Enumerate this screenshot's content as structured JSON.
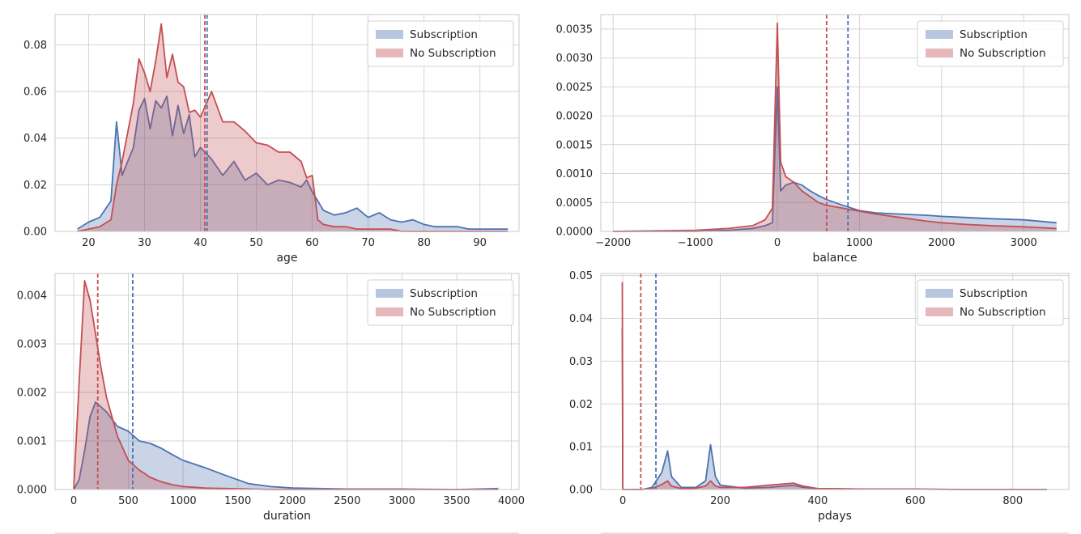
{
  "colors": {
    "subscription": "#4c72b0",
    "no_subscription": "#c44e52"
  },
  "chart_data": [
    {
      "type": "area",
      "xlabel": "age",
      "xlim": [
        14,
        97
      ],
      "ylim": [
        0,
        0.093
      ],
      "xticks": [
        20,
        30,
        40,
        50,
        60,
        70,
        80,
        90
      ],
      "xtick_labels": [
        "20",
        "30",
        "40",
        "50",
        "60",
        "70",
        "80",
        "90"
      ],
      "yticks": [
        0,
        0.02,
        0.04,
        0.06,
        0.08
      ],
      "ytick_labels": [
        "0.00",
        "0.02",
        "0.04",
        "0.06",
        "0.08"
      ],
      "grid": true,
      "legend": "top-right",
      "means": {
        "Subscription": 41.2,
        "No Subscription": 40.8
      },
      "series": [
        {
          "name": "Subscription",
          "x": [
            18,
            20,
            22,
            24,
            25,
            26,
            28,
            29,
            30,
            31,
            32,
            33,
            34,
            35,
            36,
            37,
            38,
            39,
            40,
            42,
            44,
            46,
            48,
            50,
            52,
            54,
            56,
            58,
            59,
            60,
            61,
            62,
            64,
            66,
            68,
            70,
            72,
            74,
            76,
            78,
            80,
            82,
            84,
            86,
            88,
            90,
            92,
            95
          ],
          "y": [
            0.001,
            0.004,
            0.006,
            0.013,
            0.047,
            0.024,
            0.036,
            0.052,
            0.057,
            0.044,
            0.056,
            0.053,
            0.058,
            0.041,
            0.054,
            0.042,
            0.05,
            0.032,
            0.036,
            0.031,
            0.024,
            0.03,
            0.022,
            0.025,
            0.02,
            0.022,
            0.021,
            0.019,
            0.022,
            0.017,
            0.013,
            0.009,
            0.007,
            0.008,
            0.01,
            0.006,
            0.008,
            0.005,
            0.004,
            0.005,
            0.003,
            0.002,
            0.002,
            0.002,
            0.001,
            0.001,
            0.001,
            0.001
          ]
        },
        {
          "name": "No Subscription",
          "x": [
            18,
            20,
            22,
            24,
            25,
            26,
            28,
            29,
            30,
            31,
            32,
            33,
            34,
            35,
            36,
            37,
            38,
            39,
            40,
            42,
            44,
            46,
            48,
            50,
            52,
            54,
            56,
            58,
            59,
            60,
            61,
            62,
            64,
            66,
            68,
            70,
            72,
            74,
            76,
            78,
            80,
            82,
            84,
            86,
            88,
            90,
            92,
            95
          ],
          "y": [
            0.0,
            0.001,
            0.002,
            0.005,
            0.02,
            0.03,
            0.055,
            0.074,
            0.068,
            0.06,
            0.073,
            0.089,
            0.066,
            0.076,
            0.064,
            0.062,
            0.051,
            0.052,
            0.049,
            0.06,
            0.047,
            0.047,
            0.043,
            0.038,
            0.037,
            0.034,
            0.034,
            0.03,
            0.023,
            0.024,
            0.005,
            0.003,
            0.002,
            0.002,
            0.001,
            0.001,
            0.001,
            0.001,
            0.0,
            0.0,
            0.0,
            0.0,
            0.0,
            0.0,
            0.0,
            0.0,
            0.0,
            0.0
          ]
        }
      ]
    },
    {
      "type": "area",
      "xlabel": "balance",
      "xlim": [
        -2150,
        3550
      ],
      "ylim": [
        0,
        0.00375
      ],
      "xticks": [
        -2000,
        -1000,
        0,
        1000,
        2000,
        3000
      ],
      "xtick_labels": [
        "−2000",
        "−1000",
        "0",
        "1000",
        "2000",
        "3000"
      ],
      "yticks": [
        0,
        0.0005,
        0.001,
        0.0015,
        0.002,
        0.0025,
        0.003,
        0.0035
      ],
      "ytick_labels": [
        "0.0000",
        "0.0005",
        "0.0010",
        "0.0015",
        "0.0020",
        "0.0025",
        "0.0030",
        "0.0035"
      ],
      "grid": true,
      "legend": "top-right",
      "means": {
        "Subscription": 860,
        "No Subscription": 600
      },
      "series": [
        {
          "name": "Subscription",
          "x": [
            -2000,
            -1500,
            -1000,
            -600,
            -300,
            -150,
            -60,
            0,
            40,
            100,
            200,
            300,
            400,
            500,
            600,
            800,
            1000,
            1200,
            1500,
            1800,
            2000,
            2300,
            2600,
            3000,
            3400
          ],
          "y": [
            0.0,
            0.0,
            0.0,
            2e-05,
            5e-05,
            0.0001,
            0.00015,
            0.0025,
            0.0007,
            0.0008,
            0.00085,
            0.0008,
            0.0007,
            0.00062,
            0.00055,
            0.00045,
            0.00036,
            0.00032,
            0.0003,
            0.00028,
            0.00026,
            0.00024,
            0.00022,
            0.0002,
            0.00015
          ]
        },
        {
          "name": "No Subscription",
          "x": [
            -2000,
            -1500,
            -1000,
            -600,
            -300,
            -150,
            -60,
            0,
            40,
            100,
            200,
            300,
            400,
            500,
            600,
            800,
            1000,
            1200,
            1500,
            1800,
            2000,
            2300,
            2600,
            3000,
            3400
          ],
          "y": [
            0.0,
            1e-05,
            2e-05,
            5e-05,
            0.0001,
            0.0002,
            0.0004,
            0.0036,
            0.0012,
            0.00095,
            0.00085,
            0.0007,
            0.0006,
            0.0005,
            0.00045,
            0.0004,
            0.00035,
            0.0003,
            0.00024,
            0.00018,
            0.00015,
            0.00012,
            0.0001,
            8e-05,
            5e-05
          ]
        }
      ]
    },
    {
      "type": "area",
      "xlabel": "duration",
      "xlim": [
        -170,
        4070
      ],
      "ylim": [
        0,
        0.00445
      ],
      "xticks": [
        0,
        500,
        1000,
        1500,
        2000,
        2500,
        3000,
        3500,
        4000
      ],
      "xtick_labels": [
        "0",
        "500",
        "1000",
        "1500",
        "2000",
        "2500",
        "3000",
        "3500",
        "4000"
      ],
      "yticks": [
        0,
        0.001,
        0.002,
        0.003,
        0.004
      ],
      "ytick_labels": [
        "0.000",
        "0.001",
        "0.002",
        "0.003",
        "0.004"
      ],
      "grid": true,
      "legend": "top-right",
      "means": {
        "Subscription": 540,
        "No Subscription": 220
      },
      "series": [
        {
          "name": "Subscription",
          "x": [
            0,
            50,
            100,
            150,
            200,
            250,
            300,
            400,
            500,
            600,
            700,
            800,
            900,
            1000,
            1200,
            1400,
            1600,
            1800,
            2000,
            2500,
            3000,
            3500,
            3880
          ],
          "y": [
            0.0,
            0.0002,
            0.0008,
            0.0015,
            0.0018,
            0.0017,
            0.0016,
            0.0013,
            0.0012,
            0.001,
            0.00095,
            0.00085,
            0.00072,
            0.0006,
            0.00045,
            0.00028,
            0.00012,
            6e-05,
            3e-05,
            1e-05,
            1e-05,
            0.0,
            2e-05
          ]
        },
        {
          "name": "No Subscription",
          "x": [
            0,
            50,
            100,
            150,
            200,
            250,
            300,
            400,
            500,
            600,
            700,
            800,
            900,
            1000,
            1200,
            1400,
            1600,
            1800,
            2000,
            2500,
            3000,
            3500,
            3880
          ],
          "y": [
            0.0,
            0.0022,
            0.0043,
            0.0039,
            0.0032,
            0.0025,
            0.0019,
            0.0011,
            0.0006,
            0.0004,
            0.00025,
            0.00016,
            0.0001,
            6e-05,
            3e-05,
            2e-05,
            1e-05,
            0.0,
            0.0,
            0.0,
            0.0,
            0.0,
            0.0
          ]
        }
      ]
    },
    {
      "type": "area",
      "xlabel": "pdays",
      "xlim": [
        -45,
        915
      ],
      "ylim": [
        0,
        0.0505
      ],
      "xticks": [
        0,
        200,
        400,
        600,
        800
      ],
      "xtick_labels": [
        "0",
        "200",
        "400",
        "600",
        "800"
      ],
      "yticks": [
        0,
        0.01,
        0.02,
        0.03,
        0.04,
        0.05
      ],
      "ytick_labels": [
        "0.00",
        "0.01",
        "0.02",
        "0.03",
        "0.04",
        "0.05"
      ],
      "grid": true,
      "legend": "top-right",
      "means": {
        "Subscription": 68,
        "No Subscription": 37
      },
      "series": [
        {
          "name": "Subscription",
          "x": [
            -1,
            0,
            20,
            40,
            60,
            80,
            92,
            100,
            120,
            150,
            170,
            180,
            190,
            200,
            250,
            300,
            350,
            370,
            400,
            500,
            600,
            700,
            800,
            870
          ],
          "y": [
            0.038,
            0.0,
            0.0,
            0.0,
            0.0005,
            0.004,
            0.009,
            0.003,
            0.0005,
            0.0005,
            0.002,
            0.0105,
            0.003,
            0.001,
            0.0003,
            0.0005,
            0.001,
            0.0005,
            0.0002,
            0.0001,
            0.0001,
            0.0,
            0.0,
            0.0
          ]
        },
        {
          "name": "No Subscription",
          "x": [
            -1,
            0,
            20,
            40,
            60,
            80,
            92,
            100,
            120,
            150,
            170,
            180,
            190,
            200,
            250,
            300,
            350,
            370,
            400,
            500,
            600,
            700,
            800,
            870
          ],
          "y": [
            0.0485,
            0.0,
            0.0,
            0.0,
            0.0002,
            0.0012,
            0.002,
            0.0008,
            0.0002,
            0.0003,
            0.0008,
            0.002,
            0.0008,
            0.0005,
            0.0005,
            0.001,
            0.0015,
            0.0008,
            0.0002,
            0.0001,
            0.0001,
            0.0,
            0.0,
            0.0
          ]
        }
      ]
    }
  ]
}
